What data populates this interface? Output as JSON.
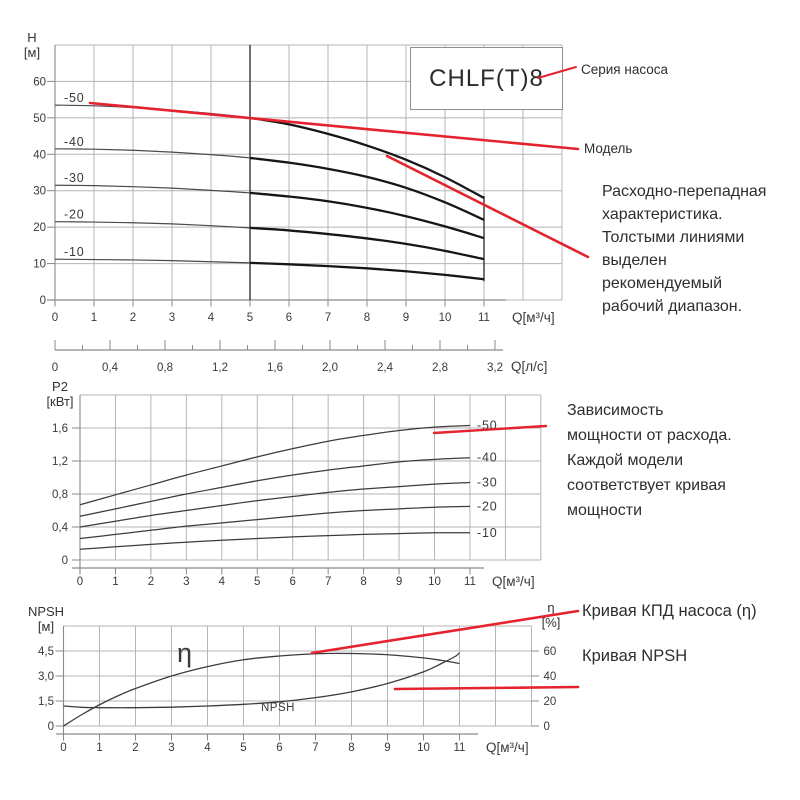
{
  "series_box": "CHLF(T)8",
  "annotations": {
    "series_label": "Серия насоса",
    "model_label": "Модель",
    "flow_note_lines": [
      "Расходно-перепадная",
      "характеристика.",
      "Толстыми линиями",
      "выделен",
      "рекомендуемый",
      "рабочий диапазон."
    ],
    "power_note_lines": [
      "Зависимость",
      "мощности от расхода.",
      "Каждой модели",
      "соответствует кривая",
      "мощности"
    ],
    "eta_note": "Кривая КПД насоса (η)",
    "npsh_note": "Кривая NPSH"
  },
  "chart_data": [
    {
      "type": "line",
      "name": "head-vs-flow",
      "ylabel_lines": [
        "H",
        "[м]"
      ],
      "xlabel": "Q[м³/ч]",
      "x_ticks": [
        "0",
        "1",
        "2",
        "3",
        "4",
        "5",
        "6",
        "7",
        "8",
        "9",
        "10",
        "11"
      ],
      "y_ticks": [
        {
          "v": 0,
          "label": "0"
        },
        {
          "v": 10,
          "label": "10"
        },
        {
          "v": 20,
          "label": "20"
        },
        {
          "v": 30,
          "label": "30"
        },
        {
          "v": 40,
          "label": "40"
        },
        {
          "v": 50,
          "label": "50"
        },
        {
          "v": 60,
          "label": "60"
        }
      ],
      "ylim": [
        0,
        70
      ],
      "recommended_range": [
        5,
        11
      ],
      "secondary_x": {
        "label": "Q[л/с]",
        "ticks": [
          {
            "v": 0,
            "label": "0"
          },
          {
            "v": 0.4,
            "label": "0,4"
          },
          {
            "v": 0.8,
            "label": "0,8"
          },
          {
            "v": 1.2,
            "label": "1,2"
          },
          {
            "v": 1.6,
            "label": "1,6"
          },
          {
            "v": 2,
            "label": "2,0"
          },
          {
            "v": 2.4,
            "label": "2,4"
          },
          {
            "v": 2.8,
            "label": "2,8"
          },
          {
            "v": 3.2,
            "label": "3,2"
          }
        ]
      },
      "series": [
        {
          "name": "-50",
          "points": [
            [
              0,
              53.5
            ],
            [
              1,
              53.3
            ],
            [
              2,
              52.8
            ],
            [
              3,
              52.1
            ],
            [
              4,
              51.2
            ],
            [
              5,
              50
            ],
            [
              6,
              48.2
            ],
            [
              7,
              45.6
            ],
            [
              8,
              42.4
            ],
            [
              9,
              38.5
            ],
            [
              10,
              33.7
            ],
            [
              11,
              28
            ]
          ]
        },
        {
          "name": "-40",
          "points": [
            [
              0,
              41.5
            ],
            [
              1,
              41.4
            ],
            [
              2,
              41.1
            ],
            [
              3,
              40.6
            ],
            [
              4,
              39.9
            ],
            [
              5,
              39
            ],
            [
              6,
              37.7
            ],
            [
              7,
              36
            ],
            [
              8,
              33.8
            ],
            [
              9,
              30.8
            ],
            [
              10,
              26.8
            ],
            [
              11,
              22
            ]
          ]
        },
        {
          "name": "-30",
          "points": [
            [
              0,
              31.5
            ],
            [
              1,
              31.4
            ],
            [
              2,
              31.1
            ],
            [
              3,
              30.7
            ],
            [
              4,
              30.1
            ],
            [
              5,
              29.4
            ],
            [
              6,
              28.4
            ],
            [
              7,
              27.1
            ],
            [
              8,
              25.3
            ],
            [
              9,
              23
            ],
            [
              10,
              20.2
            ],
            [
              11,
              17
            ]
          ]
        },
        {
          "name": "-20",
          "points": [
            [
              0,
              21.5
            ],
            [
              1,
              21.4
            ],
            [
              2,
              21.2
            ],
            [
              3,
              20.9
            ],
            [
              4,
              20.4
            ],
            [
              5,
              19.8
            ],
            [
              6,
              19.1
            ],
            [
              7,
              18.1
            ],
            [
              8,
              16.9
            ],
            [
              9,
              15.4
            ],
            [
              10,
              13.5
            ],
            [
              11,
              11.2
            ]
          ]
        },
        {
          "name": "-10",
          "points": [
            [
              0,
              11.2
            ],
            [
              1,
              11.1
            ],
            [
              2,
              11
            ],
            [
              3,
              10.8
            ],
            [
              4,
              10.5
            ],
            [
              5,
              10.2
            ],
            [
              6,
              9.8
            ],
            [
              7,
              9.3
            ],
            [
              8,
              8.7
            ],
            [
              9,
              7.9
            ],
            [
              10,
              6.9
            ],
            [
              11,
              5.7
            ]
          ]
        }
      ]
    },
    {
      "type": "line",
      "name": "power-vs-flow",
      "ylabel_lines": [
        "P2",
        "[кВт]"
      ],
      "xlabel": "Q[м³/ч]",
      "x_ticks": [
        "0",
        "1",
        "2",
        "3",
        "4",
        "5",
        "6",
        "7",
        "8",
        "9",
        "10",
        "11"
      ],
      "y_ticks": [
        {
          "v": 0,
          "label": "0"
        },
        {
          "v": 0.4,
          "label": "0,4"
        },
        {
          "v": 0.8,
          "label": "0,8"
        },
        {
          "v": 1.2,
          "label": "1,2"
        },
        {
          "v": 1.6,
          "label": "1,6"
        }
      ],
      "ylim": [
        0,
        2
      ],
      "series": [
        {
          "name": "-50",
          "points": [
            [
              0,
              0.67
            ],
            [
              1,
              0.79
            ],
            [
              2,
              0.91
            ],
            [
              3,
              1.03
            ],
            [
              4,
              1.14
            ],
            [
              5,
              1.25
            ],
            [
              6,
              1.35
            ],
            [
              7,
              1.44
            ],
            [
              8,
              1.51
            ],
            [
              9,
              1.57
            ],
            [
              10,
              1.61
            ],
            [
              11,
              1.63
            ]
          ]
        },
        {
          "name": "-40",
          "points": [
            [
              0,
              0.53
            ],
            [
              1,
              0.62
            ],
            [
              2,
              0.71
            ],
            [
              3,
              0.8
            ],
            [
              4,
              0.88
            ],
            [
              5,
              0.96
            ],
            [
              6,
              1.03
            ],
            [
              7,
              1.09
            ],
            [
              8,
              1.14
            ],
            [
              9,
              1.19
            ],
            [
              10,
              1.22
            ],
            [
              11,
              1.24
            ]
          ]
        },
        {
          "name": "-30",
          "points": [
            [
              0,
              0.4
            ],
            [
              1,
              0.47
            ],
            [
              2,
              0.54
            ],
            [
              3,
              0.6
            ],
            [
              4,
              0.66
            ],
            [
              5,
              0.72
            ],
            [
              6,
              0.77
            ],
            [
              7,
              0.82
            ],
            [
              8,
              0.86
            ],
            [
              9,
              0.89
            ],
            [
              10,
              0.92
            ],
            [
              11,
              0.94
            ]
          ]
        },
        {
          "name": "-20",
          "points": [
            [
              0,
              0.26
            ],
            [
              1,
              0.31
            ],
            [
              2,
              0.36
            ],
            [
              3,
              0.41
            ],
            [
              4,
              0.45
            ],
            [
              5,
              0.49
            ],
            [
              6,
              0.53
            ],
            [
              7,
              0.57
            ],
            [
              8,
              0.6
            ],
            [
              9,
              0.62
            ],
            [
              10,
              0.64
            ],
            [
              11,
              0.65
            ]
          ]
        },
        {
          "name": "-10",
          "points": [
            [
              0,
              0.13
            ],
            [
              1,
              0.16
            ],
            [
              2,
              0.19
            ],
            [
              3,
              0.215
            ],
            [
              4,
              0.24
            ],
            [
              5,
              0.26
            ],
            [
              6,
              0.28
            ],
            [
              7,
              0.295
            ],
            [
              8,
              0.31
            ],
            [
              9,
              0.32
            ],
            [
              10,
              0.33
            ],
            [
              11,
              0.33
            ]
          ]
        }
      ]
    },
    {
      "type": "line",
      "name": "npsh-and-efficiency",
      "ylabel_lines": [
        "NPSH",
        "[м]"
      ],
      "y2label_lines": [
        "η",
        "[%]"
      ],
      "xlabel": "Q[м³/ч]",
      "x_ticks": [
        "0",
        "1",
        "2",
        "3",
        "4",
        "5",
        "6",
        "7",
        "8",
        "9",
        "10",
        "11"
      ],
      "y_ticks": [
        {
          "v": 0,
          "label": "0"
        },
        {
          "v": 1.5,
          "label": "1,5"
        },
        {
          "v": 3,
          "label": "3,0"
        },
        {
          "v": 4.5,
          "label": "4,5"
        }
      ],
      "y2_ticks": [
        {
          "v": 0,
          "label": "0"
        },
        {
          "v": 20,
          "label": "20"
        },
        {
          "v": 40,
          "label": "40"
        },
        {
          "v": 60,
          "label": "60"
        }
      ],
      "ylim": [
        0,
        6
      ],
      "y2lim": [
        0,
        80
      ],
      "series": [
        {
          "name": "η",
          "axis": "right",
          "points": [
            [
              0,
              0
            ],
            [
              0.5,
              9
            ],
            [
              1,
              17
            ],
            [
              1.5,
              24
            ],
            [
              2,
              30
            ],
            [
              3,
              40
            ],
            [
              4,
              47.5
            ],
            [
              5,
              53
            ],
            [
              6,
              56
            ],
            [
              7,
              57.8
            ],
            [
              8,
              58
            ],
            [
              9,
              57
            ],
            [
              10,
              54.5
            ],
            [
              10.5,
              52.5
            ],
            [
              11,
              50
            ]
          ]
        },
        {
          "name": "NPSH",
          "axis": "left",
          "points": [
            [
              0,
              1.2
            ],
            [
              0.5,
              1.12
            ],
            [
              1,
              1.1
            ],
            [
              2,
              1.1
            ],
            [
              3,
              1.13
            ],
            [
              4,
              1.2
            ],
            [
              5,
              1.3
            ],
            [
              6,
              1.45
            ],
            [
              7,
              1.7
            ],
            [
              8,
              2.05
            ],
            [
              9,
              2.55
            ],
            [
              10,
              3.25
            ],
            [
              10.5,
              3.75
            ],
            [
              10.9,
              4.2
            ],
            [
              11,
              4.4
            ]
          ]
        }
      ]
    }
  ]
}
